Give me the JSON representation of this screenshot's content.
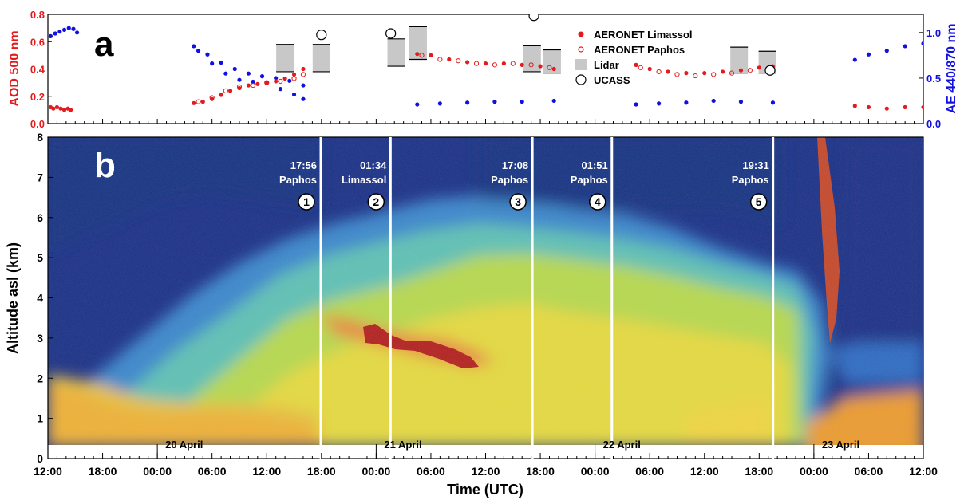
{
  "chart_data": [
    {
      "panel_label": "a",
      "type": "scatter",
      "xlabel": "",
      "ylabel_left": "AOD 500 nm",
      "ylabel_right": "AE 440/870 nm",
      "ylim_left": [
        0,
        0.8
      ],
      "ylim_right": [
        0,
        1.2
      ],
      "y_ticks_left": [
        "0.0",
        "0.2",
        "0.4",
        "0.6",
        "0.8"
      ],
      "y_ticks_right": [
        "0.0",
        "0.5",
        "1.0"
      ],
      "colors": {
        "aod": "#e41a1c",
        "ae": "#1010e0",
        "lidar": "#c8c8c8"
      },
      "legend_position": "top-center",
      "legend": [
        "AERONET Limassol",
        "AERONET Paphos",
        "Lidar",
        "UCASS"
      ],
      "aod_series": [
        {
          "name": "AERONET Limassol",
          "x": [
            0.3,
            0.6,
            1.0,
            1.4,
            1.8,
            2.2,
            2.5
          ],
          "y": [
            0.12,
            0.11,
            0.12,
            0.11,
            0.1,
            0.11,
            0.1
          ]
        },
        {
          "name": "AERONET Limassol",
          "x": [
            16.0,
            17.0,
            18.0,
            19.0,
            20.0,
            21.0,
            22.0,
            23.0,
            24.0,
            25.0,
            26.0,
            27.0,
            28.0
          ],
          "y": [
            0.15,
            0.16,
            0.18,
            0.21,
            0.24,
            0.26,
            0.28,
            0.29,
            0.3,
            0.31,
            0.33,
            0.36,
            0.4
          ]
        },
        {
          "name": "AERONET Paphos",
          "x": [
            16.5,
            18.0,
            19.5,
            21.0,
            22.5,
            24.0,
            25.5,
            27.0,
            28.0
          ],
          "y": [
            0.16,
            0.19,
            0.24,
            0.27,
            0.28,
            0.3,
            0.31,
            0.33,
            0.36
          ]
        },
        {
          "name": "AERONET Limassol",
          "x": [
            40.5,
            42.0,
            44.0,
            46.0,
            48.0,
            50.0,
            52.0,
            54.0,
            55.5
          ],
          "y": [
            0.51,
            0.5,
            0.47,
            0.45,
            0.44,
            0.44,
            0.43,
            0.42,
            0.4
          ]
        },
        {
          "name": "AERONET Paphos",
          "x": [
            41.0,
            43.0,
            45.0,
            47.0,
            49.0,
            51.0,
            53.0,
            55.0
          ],
          "y": [
            0.5,
            0.47,
            0.46,
            0.44,
            0.43,
            0.44,
            0.43,
            0.41
          ]
        },
        {
          "name": "AERONET Limassol",
          "x": [
            64.5,
            66.0,
            68.0,
            70.0,
            72.0,
            74.0,
            76.0,
            78.0,
            79.5
          ],
          "y": [
            0.43,
            0.4,
            0.38,
            0.37,
            0.37,
            0.38,
            0.39,
            0.41,
            0.42
          ]
        },
        {
          "name": "AERONET Paphos",
          "x": [
            65.0,
            67.0,
            69.0,
            71.0,
            73.0,
            75.0,
            77.0,
            79.0
          ],
          "y": [
            0.41,
            0.38,
            0.36,
            0.35,
            0.36,
            0.37,
            0.39,
            0.4
          ]
        },
        {
          "name": "AERONET Limassol",
          "x": [
            88.5,
            90.0,
            92.0,
            94.0,
            96.0,
            98.0,
            99.8
          ],
          "y": [
            0.13,
            0.12,
            0.11,
            0.12,
            0.12,
            0.13,
            0.14
          ]
        }
      ],
      "ae_series": [
        {
          "x": [
            0.3,
            0.8,
            1.3,
            1.8,
            2.3,
            2.8,
            3.2
          ],
          "y": [
            0.96,
            0.99,
            1.01,
            1.03,
            1.05,
            1.04,
            1.0
          ]
        },
        {
          "x": [
            16.0,
            17.5,
            19.0,
            20.5,
            22.0,
            23.5,
            25.0,
            26.5,
            28.0
          ],
          "y": [
            0.85,
            0.76,
            0.67,
            0.6,
            0.55,
            0.52,
            0.5,
            0.47,
            0.42
          ]
        },
        {
          "x": [
            16.5,
            18.0,
            19.5,
            21.0,
            22.5,
            24.0,
            25.5,
            27.0,
            28.0
          ],
          "y": [
            0.8,
            0.66,
            0.55,
            0.48,
            0.46,
            0.45,
            0.38,
            0.32,
            0.27
          ]
        },
        {
          "x": [
            40.5,
            43.0,
            46.0,
            49.0,
            52.0,
            55.5
          ],
          "y": [
            0.21,
            0.22,
            0.23,
            0.24,
            0.24,
            0.25
          ]
        },
        {
          "x": [
            64.5,
            67.0,
            70.0,
            73.0,
            76.0,
            79.5
          ],
          "y": [
            0.21,
            0.22,
            0.23,
            0.25,
            0.24,
            0.23
          ]
        },
        {
          "x": [
            88.5,
            90.0,
            92.0,
            94.0,
            96.0,
            98.0,
            99.8
          ],
          "y": [
            0.7,
            0.76,
            0.8,
            0.85,
            0.88,
            0.92,
            0.96
          ]
        }
      ],
      "lidar_bars": [
        {
          "x": 26.0,
          "low": 0.38,
          "high": 0.58
        },
        {
          "x": 30.0,
          "low": 0.38,
          "high": 0.58
        },
        {
          "x": 38.2,
          "low": 0.42,
          "high": 0.62
        },
        {
          "x": 40.6,
          "low": 0.47,
          "high": 0.71
        },
        {
          "x": 53.1,
          "low": 0.38,
          "high": 0.57
        },
        {
          "x": 55.3,
          "low": 0.37,
          "high": 0.54
        },
        {
          "x": 75.8,
          "low": 0.37,
          "high": 0.56
        },
        {
          "x": 78.9,
          "low": 0.37,
          "high": 0.53
        }
      ],
      "ucass_points": [
        {
          "x": 30.0,
          "y": 0.65
        },
        {
          "x": 37.6,
          "y": 0.66
        },
        {
          "x": 53.3,
          "y": 0.79
        },
        {
          "x": 79.2,
          "y": 0.39
        }
      ]
    },
    {
      "panel_label": "b",
      "type": "heatmap",
      "xlabel": "Time (UTC)",
      "ylabel": "Altitude asl (km)",
      "ylim": [
        0,
        8
      ],
      "xlim_hours_from_noon_19_april": [
        0,
        96
      ],
      "x_tick_labels": [
        "12:00",
        "18:00",
        "00:00",
        "06:00",
        "12:00",
        "18:00",
        "00:00",
        "06:00",
        "12:00",
        "18:00",
        "00:00",
        "06:00",
        "12:00",
        "18:00",
        "00:00",
        "06:00",
        "12:00"
      ],
      "y_tick_labels": [
        "0",
        "1",
        "2",
        "3",
        "4",
        "5",
        "6",
        "7",
        "8"
      ],
      "day_labels": [
        "20 April",
        "21 April",
        "22 April",
        "23 April"
      ],
      "events": [
        {
          "number": "1",
          "time": "17:56",
          "place": "Paphos",
          "hour": 29.93
        },
        {
          "number": "2",
          "time": "01:34",
          "place": "Limassol",
          "hour": 37.57
        },
        {
          "number": "3",
          "time": "17:08",
          "place": "Paphos",
          "hour": 53.13
        },
        {
          "number": "4",
          "time": "01:51",
          "place": "Paphos",
          "hour": 61.85
        },
        {
          "number": "5",
          "time": "19:31",
          "place": "Paphos",
          "hour": 79.52
        }
      ]
    }
  ]
}
